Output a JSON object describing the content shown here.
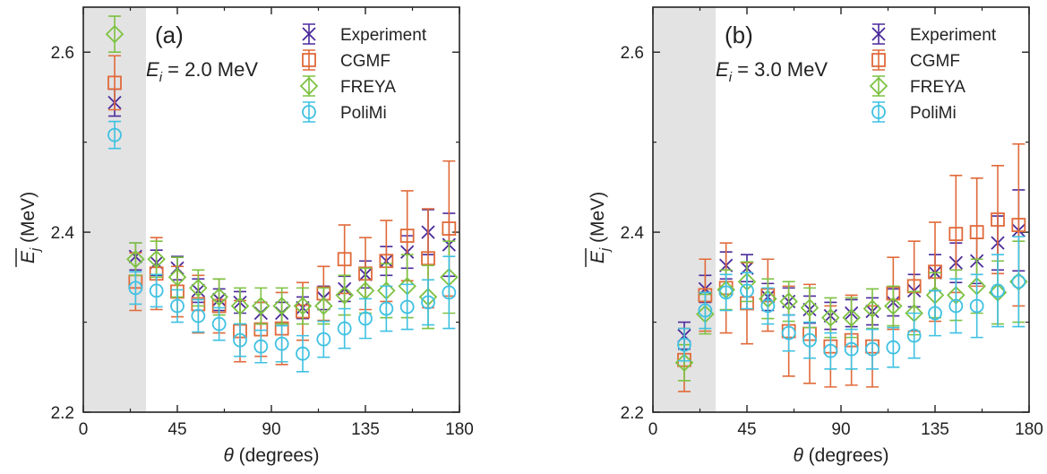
{
  "chart_data": [
    {
      "type": "scatter",
      "panel_label": "(a)",
      "condition_var": "E",
      "condition_sub": "i",
      "condition_value": " = 2.0 MeV",
      "xlabel_symbol": "θ",
      "xlabel_unit": " (degrees)",
      "ylabel_symbol": "E",
      "ylabel_sub": "j",
      "ylabel_unit": " (MeV)",
      "xlim": [
        0,
        180
      ],
      "ylim": [
        2.2,
        2.65
      ],
      "xticks": [
        0,
        45,
        90,
        135,
        180
      ],
      "xtick_labels": [
        "0",
        "45",
        "90",
        "135",
        "180"
      ],
      "yticks": [
        2.2,
        2.4,
        2.6
      ],
      "ytick_labels": [
        "2.2",
        "2.4",
        "2.6"
      ],
      "shaded_region": [
        0,
        30
      ],
      "legend_position": "top-right",
      "series": [
        {
          "name": "Experiment",
          "marker": "x",
          "color": "#4b2a9b",
          "x": [
            15,
            25,
            35,
            45,
            55,
            65,
            75,
            85,
            95,
            105,
            115,
            125,
            135,
            145,
            155,
            165,
            175
          ],
          "y": [
            2.544,
            2.373,
            2.366,
            2.36,
            2.335,
            2.325,
            2.322,
            2.31,
            2.31,
            2.316,
            2.327,
            2.337,
            2.353,
            2.368,
            2.378,
            2.4,
            2.386
          ],
          "err": [
            0.015,
            0.015,
            0.014,
            0.013,
            0.013,
            0.012,
            0.012,
            0.012,
            0.012,
            0.012,
            0.013,
            0.014,
            0.015,
            0.016,
            0.018,
            0.025,
            0.035
          ]
        },
        {
          "name": "CGMF",
          "marker": "square",
          "color": "#e06a3a",
          "x": [
            15,
            25,
            35,
            45,
            55,
            65,
            75,
            85,
            95,
            105,
            115,
            125,
            135,
            145,
            155,
            165,
            175
          ],
          "y": [
            2.566,
            2.345,
            2.354,
            2.334,
            2.32,
            2.318,
            2.29,
            2.292,
            2.293,
            2.312,
            2.332,
            2.37,
            2.354,
            2.368,
            2.396,
            2.371,
            2.404
          ],
          "err": [
            0.03,
            0.032,
            0.04,
            0.028,
            0.032,
            0.03,
            0.034,
            0.03,
            0.04,
            0.032,
            0.03,
            0.038,
            0.04,
            0.045,
            0.05,
            0.055,
            0.075
          ]
        },
        {
          "name": "FREYA",
          "marker": "diamond",
          "color": "#7dc242",
          "x": [
            15,
            25,
            35,
            45,
            55,
            65,
            75,
            85,
            95,
            105,
            115,
            125,
            135,
            145,
            155,
            165,
            175
          ],
          "y": [
            2.62,
            2.37,
            2.37,
            2.35,
            2.338,
            2.328,
            2.318,
            2.318,
            2.318,
            2.318,
            2.318,
            2.33,
            2.335,
            2.335,
            2.34,
            2.328,
            2.35
          ],
          "err": [
            0.02,
            0.018,
            0.02,
            0.022,
            0.02,
            0.02,
            0.02,
            0.02,
            0.02,
            0.02,
            0.02,
            0.022,
            0.025,
            0.03,
            0.035,
            0.035,
            0.04
          ]
        },
        {
          "name": "PoliMi",
          "marker": "circle",
          "color": "#3fc1e2",
          "x": [
            15,
            25,
            35,
            45,
            55,
            65,
            75,
            85,
            95,
            105,
            115,
            125,
            135,
            145,
            155,
            165,
            175
          ],
          "y": [
            2.508,
            2.338,
            2.335,
            2.318,
            2.307,
            2.298,
            2.28,
            2.273,
            2.276,
            2.265,
            2.281,
            2.293,
            2.304,
            2.315,
            2.317,
            2.322,
            2.333
          ],
          "err": [
            0.015,
            0.018,
            0.018,
            0.018,
            0.018,
            0.018,
            0.018,
            0.018,
            0.02,
            0.02,
            0.02,
            0.022,
            0.022,
            0.025,
            0.025,
            0.025,
            0.04
          ]
        }
      ]
    },
    {
      "type": "scatter",
      "panel_label": "(b)",
      "condition_var": "E",
      "condition_sub": "i",
      "condition_value": " = 3.0 MeV",
      "xlabel_symbol": "θ",
      "xlabel_unit": " (degrees)",
      "ylabel_symbol": "E",
      "ylabel_sub": "j",
      "ylabel_unit": " (MeV)",
      "xlim": [
        0,
        180
      ],
      "ylim": [
        2.2,
        2.65
      ],
      "xticks": [
        0,
        45,
        90,
        135,
        180
      ],
      "xtick_labels": [
        "0",
        "45",
        "90",
        "135",
        "180"
      ],
      "yticks": [
        2.2,
        2.4,
        2.6
      ],
      "ytick_labels": [
        "2.2",
        "2.4",
        "2.6"
      ],
      "shaded_region": [
        0,
        30
      ],
      "legend_position": "top-right",
      "series": [
        {
          "name": "Experiment",
          "marker": "x",
          "color": "#4b2a9b",
          "x": [
            15,
            25,
            35,
            45,
            55,
            65,
            75,
            85,
            95,
            105,
            115,
            125,
            135,
            145,
            155,
            165,
            175
          ],
          "y": [
            2.285,
            2.337,
            2.363,
            2.36,
            2.328,
            2.323,
            2.314,
            2.307,
            2.31,
            2.312,
            2.322,
            2.335,
            2.355,
            2.366,
            2.368,
            2.388,
            2.402
          ],
          "err": [
            0.015,
            0.015,
            0.015,
            0.015,
            0.015,
            0.015,
            0.015,
            0.015,
            0.015,
            0.015,
            0.015,
            0.018,
            0.02,
            0.022,
            0.025,
            0.03,
            0.045
          ]
        },
        {
          "name": "CGMF",
          "marker": "square",
          "color": "#e06a3a",
          "x": [
            15,
            25,
            35,
            45,
            55,
            65,
            75,
            85,
            95,
            105,
            115,
            125,
            135,
            145,
            155,
            165,
            175
          ],
          "y": [
            2.258,
            2.33,
            2.338,
            2.321,
            2.33,
            2.29,
            2.287,
            2.273,
            2.28,
            2.273,
            2.332,
            2.34,
            2.356,
            2.398,
            2.4,
            2.414,
            2.408
          ],
          "err": [
            0.035,
            0.04,
            0.05,
            0.045,
            0.04,
            0.05,
            0.055,
            0.045,
            0.05,
            0.045,
            0.04,
            0.05,
            0.055,
            0.065,
            0.06,
            0.06,
            0.09
          ]
        },
        {
          "name": "FREYA",
          "marker": "diamond",
          "color": "#7dc242",
          "x": [
            15,
            25,
            35,
            45,
            55,
            65,
            75,
            85,
            95,
            105,
            115,
            125,
            135,
            145,
            155,
            165,
            175
          ],
          "y": [
            2.255,
            2.309,
            2.336,
            2.345,
            2.326,
            2.323,
            2.316,
            2.305,
            2.305,
            2.315,
            2.318,
            2.31,
            2.33,
            2.33,
            2.34,
            2.333,
            2.345
          ],
          "err": [
            0.02,
            0.022,
            0.022,
            0.022,
            0.022,
            0.022,
            0.022,
            0.022,
            0.022,
            0.022,
            0.022,
            0.024,
            0.025,
            0.028,
            0.03,
            0.035,
            0.045
          ]
        },
        {
          "name": "PoliMi",
          "marker": "circle",
          "color": "#3fc1e2",
          "x": [
            15,
            25,
            35,
            45,
            55,
            65,
            75,
            85,
            95,
            105,
            115,
            125,
            135,
            145,
            155,
            165,
            175
          ],
          "y": [
            2.275,
            2.313,
            2.333,
            2.335,
            2.318,
            2.288,
            2.28,
            2.268,
            2.27,
            2.27,
            2.272,
            2.285,
            2.31,
            2.318,
            2.318,
            2.335,
            2.345
          ],
          "err": [
            0.018,
            0.02,
            0.02,
            0.02,
            0.02,
            0.02,
            0.02,
            0.02,
            0.022,
            0.022,
            0.022,
            0.025,
            0.025,
            0.03,
            0.035,
            0.04,
            0.05
          ]
        }
      ]
    }
  ]
}
